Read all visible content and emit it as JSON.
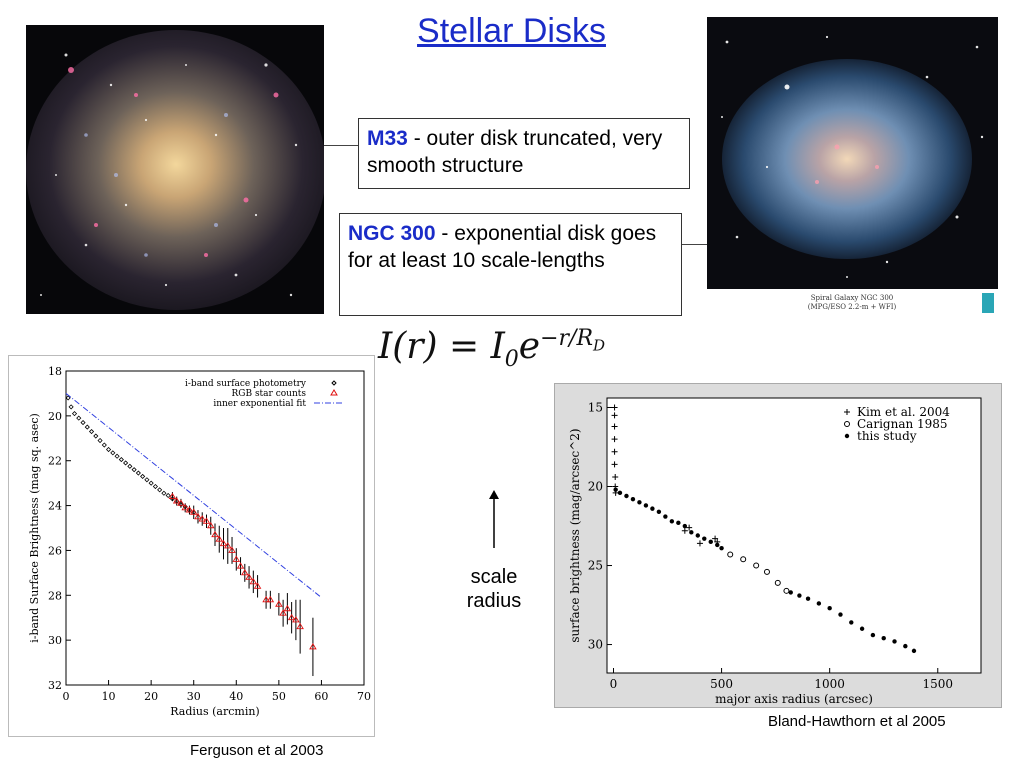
{
  "slide": {
    "title": "Stellar Disks",
    "formula": {
      "lhs": "I(r) = I",
      "sub": "0",
      "base": "e",
      "exponent": "−r/R",
      "exp_sub": "D"
    },
    "callouts": [
      {
        "name": "M33",
        "text": " - outer disk truncated, very smooth structure"
      },
      {
        "name": "NGC 300",
        "text": " - exponential disk goes for at least 10 scale-lengths"
      }
    ],
    "scale_label": "scale radius",
    "citations": {
      "left": "Ferguson et al 2003",
      "right": "Bland-Hawthorn et al 2005"
    },
    "photo_caption": {
      "line1": "Spiral Galaxy NGC 300",
      "line2": "(MPG/ESO 2.2-m + WFI)"
    }
  },
  "chart_data": [
    {
      "type": "scatter",
      "xlabel": "Radius (arcmin)",
      "ylabel": "i-band Surface Brightness (mag sq. asec)",
      "xlim": [
        0,
        70
      ],
      "ylim": [
        32,
        18
      ],
      "xticks": [
        0,
        10,
        20,
        30,
        40,
        50,
        60,
        70
      ],
      "yticks": [
        18,
        20,
        22,
        24,
        26,
        28,
        30,
        32
      ],
      "legend_position": "top-right",
      "series": [
        {
          "name": "i-band surface photometry",
          "marker": "diamond",
          "color": "#000000",
          "x": [
            0.5,
            1.2,
            2,
            3,
            4,
            5,
            6,
            7,
            8,
            9,
            10,
            11,
            12,
            13,
            14,
            15,
            16,
            17,
            18,
            19,
            20,
            21,
            22,
            23,
            24,
            25,
            26,
            27,
            28,
            29,
            30
          ],
          "y": [
            19.2,
            19.6,
            19.9,
            20.1,
            20.3,
            20.5,
            20.7,
            20.9,
            21.1,
            21.3,
            21.5,
            21.65,
            21.8,
            21.95,
            22.1,
            22.25,
            22.4,
            22.55,
            22.7,
            22.85,
            23.0,
            23.15,
            23.3,
            23.45,
            23.55,
            23.7,
            23.8,
            23.95,
            24.05,
            24.2,
            24.3
          ]
        },
        {
          "name": "RGB star counts",
          "marker": "triangle",
          "color": "#e01010",
          "x": [
            25,
            26,
            27,
            28,
            29,
            30,
            31,
            32,
            33,
            34,
            35,
            36,
            37,
            38,
            39,
            40,
            41,
            42,
            43,
            44,
            45,
            47,
            48,
            50,
            51,
            52,
            53,
            54,
            55,
            58
          ],
          "y": [
            23.6,
            23.8,
            23.9,
            24.1,
            24.2,
            24.3,
            24.5,
            24.6,
            24.7,
            24.9,
            25.3,
            25.5,
            25.7,
            25.8,
            26.0,
            26.4,
            26.7,
            27.0,
            27.2,
            27.4,
            27.6,
            28.2,
            28.2,
            28.4,
            28.8,
            28.6,
            29.0,
            29.1,
            29.4,
            30.3
          ],
          "err": [
            0.2,
            0.2,
            0.2,
            0.2,
            0.2,
            0.3,
            0.3,
            0.3,
            0.3,
            0.4,
            0.5,
            0.6,
            0.7,
            0.8,
            0.6,
            0.5,
            0.4,
            0.4,
            0.5,
            0.5,
            0.5,
            0.4,
            0.4,
            0.5,
            0.6,
            0.7,
            0.7,
            0.9,
            1.2,
            1.3
          ]
        },
        {
          "name": "inner exponential fit",
          "line": "dash-dot",
          "color": "#3040e0",
          "x": [
            0,
            60
          ],
          "y": [
            19.0,
            28.1
          ]
        }
      ]
    },
    {
      "type": "scatter",
      "xlabel": "major axis radius (arcsec)",
      "ylabel": "surface brightness (mag/arcsec^2)",
      "xlim": [
        -30,
        1700
      ],
      "ylim": [
        31.8,
        14.4
      ],
      "xticks": [
        0,
        500,
        1000,
        1500
      ],
      "yticks": [
        15,
        20,
        25,
        30
      ],
      "legend_position": "top-right",
      "series": [
        {
          "name": "Kim et al. 2004",
          "marker": "plus",
          "x": [
            5,
            5,
            5,
            5,
            5,
            5,
            8,
            8,
            10,
            330,
            350,
            400,
            470,
            480
          ],
          "y": [
            15.0,
            15.5,
            16.2,
            17.0,
            17.8,
            18.6,
            19.4,
            20.0,
            20.4,
            22.8,
            22.6,
            23.6,
            23.3,
            23.5
          ]
        },
        {
          "name": "Carignan 1985",
          "marker": "circle",
          "x": [
            540,
            600,
            660,
            710,
            760,
            800
          ],
          "y": [
            24.3,
            24.6,
            25.0,
            25.4,
            26.1,
            26.6
          ]
        },
        {
          "name": "this study",
          "marker": "filled-dot",
          "x": [
            10,
            30,
            60,
            90,
            120,
            150,
            180,
            210,
            240,
            270,
            300,
            330,
            360,
            390,
            420,
            450,
            480,
            500,
            820,
            860,
            900,
            950,
            1000,
            1050,
            1100,
            1150,
            1200,
            1250,
            1300,
            1350,
            1390
          ],
          "y": [
            20.2,
            20.4,
            20.6,
            20.8,
            21.0,
            21.2,
            21.4,
            21.6,
            21.9,
            22.2,
            22.3,
            22.5,
            22.9,
            23.1,
            23.3,
            23.5,
            23.7,
            23.9,
            26.7,
            26.9,
            27.1,
            27.4,
            27.7,
            28.1,
            28.6,
            29.0,
            29.4,
            29.6,
            29.8,
            30.1,
            30.4
          ]
        }
      ]
    }
  ]
}
